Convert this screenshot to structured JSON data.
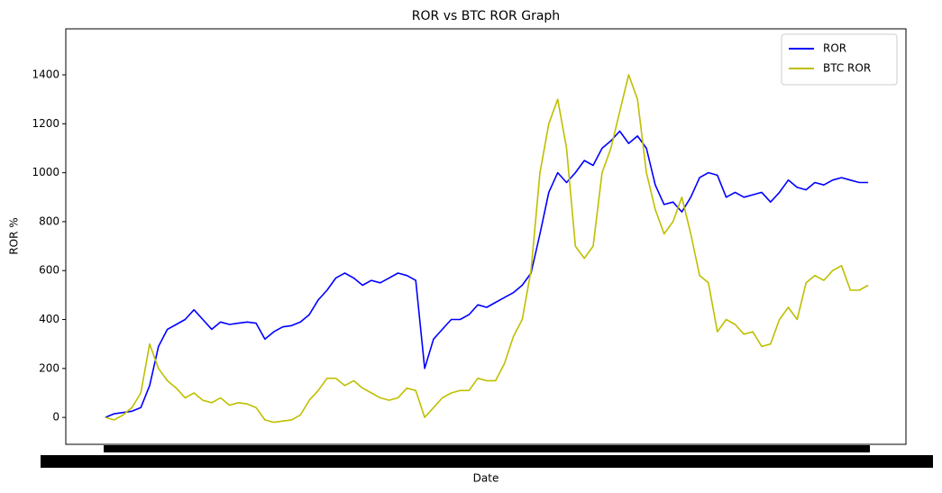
{
  "chart_data": {
    "type": "line",
    "title": "ROR vs BTC ROR Graph",
    "xlabel": "Date",
    "ylabel": "ROR %",
    "ylim": [
      -110,
      1588
    ],
    "yticks": [
      0,
      200,
      400,
      600,
      800,
      1000,
      1200,
      1400
    ],
    "legend": "upper right",
    "series": [
      {
        "name": "ROR",
        "color": "#0000ff",
        "values": [
          0,
          15,
          20,
          25,
          40,
          130,
          290,
          360,
          380,
          400,
          440,
          400,
          360,
          390,
          380,
          385,
          390,
          385,
          320,
          350,
          370,
          375,
          390,
          420,
          480,
          520,
          570,
          590,
          570,
          540,
          560,
          550,
          570,
          590,
          580,
          560,
          200,
          320,
          360,
          400,
          400,
          420,
          460,
          450,
          470,
          490,
          510,
          540,
          590,
          750,
          920,
          1000,
          960,
          1000,
          1050,
          1030,
          1100,
          1130,
          1170,
          1120,
          1150,
          1100,
          950,
          870,
          880,
          840,
          900,
          980,
          1000,
          990,
          900,
          920,
          900,
          910,
          920,
          880,
          920,
          970,
          940,
          930,
          960,
          950,
          970,
          980,
          970,
          960,
          960
        ]
      },
      {
        "name": "BTC ROR",
        "color": "#bfbf00",
        "values": [
          0,
          -10,
          10,
          40,
          100,
          300,
          200,
          150,
          120,
          80,
          100,
          70,
          60,
          80,
          50,
          60,
          55,
          40,
          -10,
          -20,
          -15,
          -10,
          10,
          70,
          110,
          160,
          160,
          130,
          150,
          120,
          100,
          80,
          70,
          80,
          120,
          110,
          0,
          40,
          80,
          100,
          110,
          110,
          160,
          150,
          150,
          220,
          330,
          400,
          600,
          1000,
          1200,
          1300,
          1100,
          700,
          650,
          700,
          1000,
          1100,
          1250,
          1400,
          1300,
          1000,
          850,
          750,
          800,
          900,
          750,
          580,
          550,
          350,
          400,
          380,
          340,
          350,
          290,
          300,
          400,
          450,
          400,
          550,
          580,
          560,
          600,
          620,
          520,
          520,
          540
        ]
      }
    ]
  }
}
